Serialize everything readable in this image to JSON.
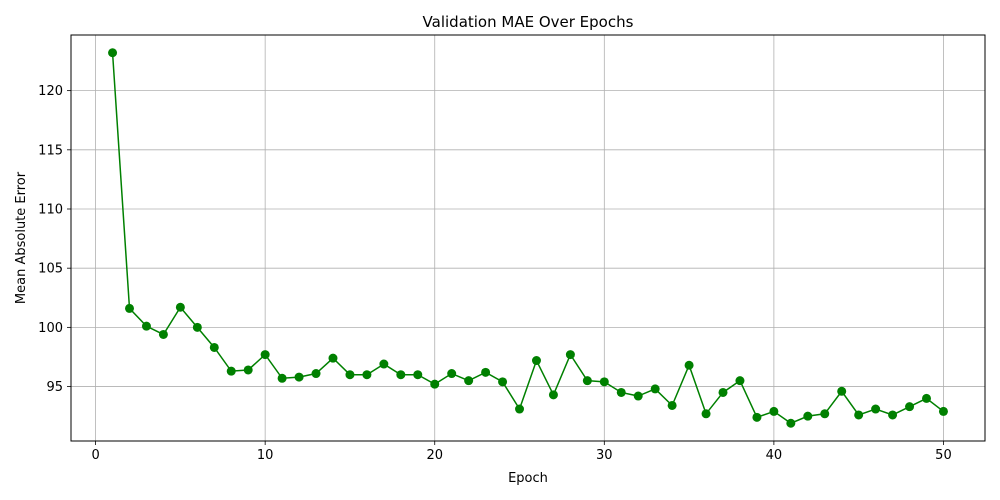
{
  "chart_data": {
    "type": "line",
    "title": "Validation MAE Over Epochs",
    "xlabel": "Epoch",
    "ylabel": "Mean Absolute Error",
    "xlim": [
      -1.45,
      52.45
    ],
    "ylim": [
      90.4,
      124.7
    ],
    "xticks": [
      0,
      10,
      20,
      30,
      40,
      50
    ],
    "yticks": [
      95,
      100,
      105,
      110,
      115,
      120
    ],
    "grid": true,
    "series": [
      {
        "name": "Validation MAE",
        "color": "#008000",
        "marker": "circle",
        "x": [
          1,
          2,
          3,
          4,
          5,
          6,
          7,
          8,
          9,
          10,
          11,
          12,
          13,
          14,
          15,
          16,
          17,
          18,
          19,
          20,
          21,
          22,
          23,
          24,
          25,
          26,
          27,
          28,
          29,
          30,
          31,
          32,
          33,
          34,
          35,
          36,
          37,
          38,
          39,
          40,
          41,
          42,
          43,
          44,
          45,
          46,
          47,
          48,
          49,
          50
        ],
        "y": [
          123.2,
          101.6,
          100.1,
          99.4,
          101.7,
          100.0,
          98.3,
          96.3,
          96.4,
          97.7,
          95.7,
          95.8,
          96.1,
          97.4,
          96.0,
          96.0,
          96.9,
          96.0,
          96.0,
          95.2,
          96.1,
          95.5,
          96.2,
          95.4,
          93.1,
          97.2,
          94.3,
          97.7,
          95.5,
          95.4,
          94.5,
          94.2,
          94.8,
          93.4,
          96.8,
          92.7,
          94.5,
          95.5,
          92.4,
          92.9,
          91.9,
          92.5,
          92.7,
          94.6,
          92.6,
          93.1,
          92.6,
          93.3,
          94.0,
          92.9
        ]
      }
    ]
  }
}
